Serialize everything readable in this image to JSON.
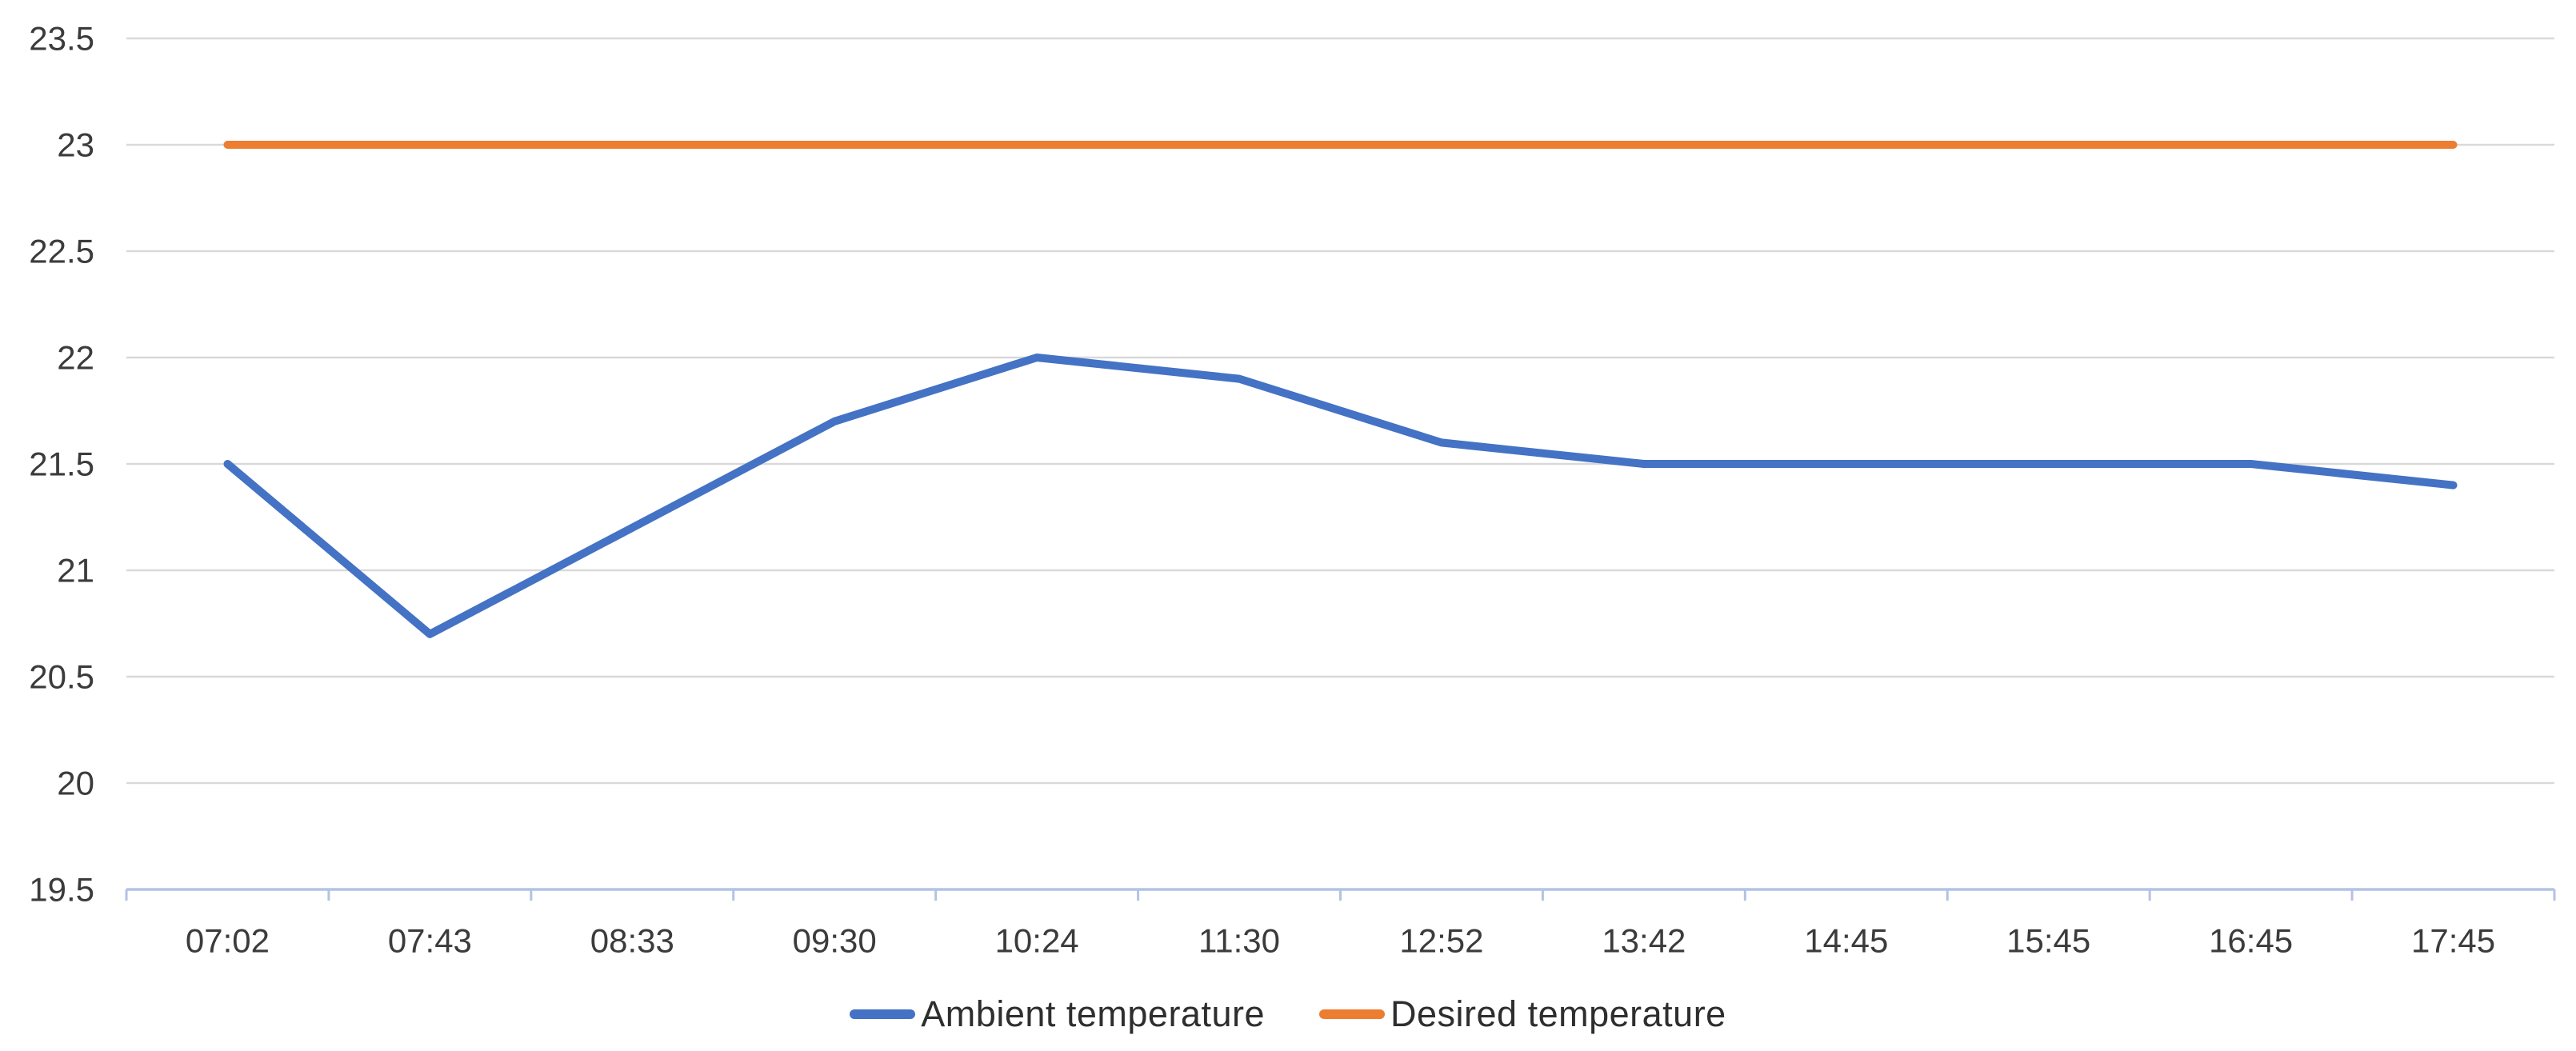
{
  "chart_data": {
    "type": "line",
    "categories": [
      "07:02",
      "07:43",
      "08:33",
      "09:30",
      "10:24",
      "11:30",
      "12:52",
      "13:42",
      "14:45",
      "15:45",
      "16:45",
      "17:45"
    ],
    "series": [
      {
        "name": "Ambient temperature",
        "color": "#4472C4",
        "values": [
          21.5,
          20.7,
          21.2,
          21.7,
          22.0,
          21.9,
          21.6,
          21.5,
          21.5,
          21.5,
          21.5,
          21.4
        ]
      },
      {
        "name": "Desired temperature",
        "color": "#ED7D31",
        "values": [
          23,
          23,
          23,
          23,
          23,
          23,
          23,
          23,
          23,
          23,
          23,
          23
        ]
      }
    ],
    "y_tick_labels": [
      "23.5",
      "23",
      "22.5",
      "22",
      "21.5",
      "21",
      "20.5",
      "20",
      "19.5"
    ],
    "ylim": [
      19.5,
      23.5
    ],
    "grid": "horizontal",
    "legend_position": "bottom",
    "colors": {
      "gridline": "#D9D9D9",
      "axis_line": "#B4C2E4",
      "axis_tick": "#B4C2E4",
      "tick_text": "#3B3B3B",
      "background": "#FFFFFF"
    }
  }
}
